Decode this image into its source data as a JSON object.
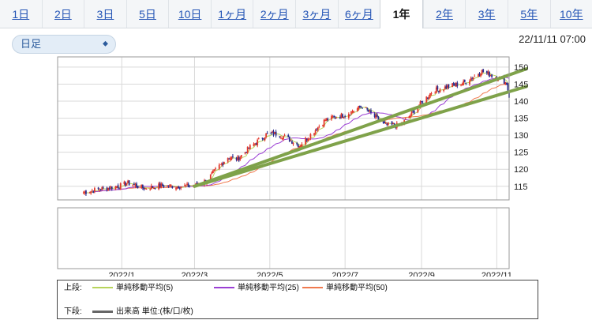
{
  "tabs": [
    {
      "label": "1日",
      "active": false
    },
    {
      "label": "2日",
      "active": false
    },
    {
      "label": "3日",
      "active": false
    },
    {
      "label": "5日",
      "active": false
    },
    {
      "label": "10日",
      "active": false
    },
    {
      "label": "1ヶ月",
      "active": false
    },
    {
      "label": "2ヶ月",
      "active": false
    },
    {
      "label": "3ヶ月",
      "active": false
    },
    {
      "label": "6ヶ月",
      "active": false
    },
    {
      "label": "1年",
      "active": true
    },
    {
      "label": "2年",
      "active": false
    },
    {
      "label": "3年",
      "active": false
    },
    {
      "label": "5年",
      "active": false
    },
    {
      "label": "10年",
      "active": false
    }
  ],
  "interval_select": {
    "value": "日足"
  },
  "timestamp": "22/11/11 07:00",
  "legend": {
    "upper_label": "上段:",
    "lower_label": "下段:",
    "ma5": {
      "label": "単純移動平均(5)",
      "color": "#b7d45c"
    },
    "ma25": {
      "label": "単純移動平均(25)",
      "color": "#9b3fd4"
    },
    "ma50": {
      "label": "単純移動平均(50)",
      "color": "#f07a4f"
    },
    "volume": {
      "label": "出来高 単位:(株/口/枚)",
      "color": "#666666"
    }
  },
  "chart_data": {
    "type": "candlestick",
    "yticks": [
      115,
      120,
      125,
      130,
      135,
      140,
      145,
      150
    ],
    "ylim": [
      111,
      153
    ],
    "xticks": [
      "2022/1",
      "2022/3",
      "2022/5",
      "2022/7",
      "2022/9",
      "2022/11"
    ],
    "xlim": [
      "2021-11-10",
      "2022-11-11"
    ],
    "price_path": [
      [
        "2021-12-01",
        113.2
      ],
      [
        "2021-12-15",
        114.2
      ],
      [
        "2022-01-01",
        115.2
      ],
      [
        "2022-01-05",
        116.0
      ],
      [
        "2022-01-20",
        114.4
      ],
      [
        "2022-02-01",
        115.2
      ],
      [
        "2022-02-15",
        115.0
      ],
      [
        "2022-03-01",
        115.1
      ],
      [
        "2022-03-10",
        116.5
      ],
      [
        "2022-03-20",
        120.5
      ],
      [
        "2022-03-28",
        123.5
      ],
      [
        "2022-04-05",
        123.0
      ],
      [
        "2022-04-15",
        126.5
      ],
      [
        "2022-04-28",
        130.2
      ],
      [
        "2022-05-08",
        130.5
      ],
      [
        "2022-05-25",
        127.0
      ],
      [
        "2022-06-02",
        129.8
      ],
      [
        "2022-06-15",
        134.5
      ],
      [
        "2022-07-01",
        136.0
      ],
      [
        "2022-07-15",
        138.5
      ],
      [
        "2022-08-02",
        133.0
      ],
      [
        "2022-08-15",
        132.8
      ],
      [
        "2022-08-25",
        136.7
      ],
      [
        "2022-09-01",
        139.5
      ],
      [
        "2022-09-10",
        143.0
      ],
      [
        "2022-09-25",
        144.5
      ],
      [
        "2022-10-05",
        145.3
      ],
      [
        "2022-10-20",
        148.8
      ],
      [
        "2022-10-28",
        147.5
      ],
      [
        "2022-11-05",
        146.5
      ],
      [
        "2022-11-09",
        145.2
      ],
      [
        "2022-11-11",
        141.0
      ]
    ],
    "trendlines": [
      {
        "start": [
          "2022-03-01",
          115.0
        ],
        "end": [
          "2022-11-25",
          149.5
        ],
        "color": "#7fa24a"
      },
      {
        "start": [
          "2022-03-01",
          115.0
        ],
        "end": [
          "2022-11-25",
          144.3
        ],
        "color": "#7fa24a"
      }
    ],
    "series": [
      {
        "name": "単純移動平均(5)"
      },
      {
        "name": "単純移動平均(25)"
      },
      {
        "name": "単純移動平均(50)"
      }
    ]
  }
}
